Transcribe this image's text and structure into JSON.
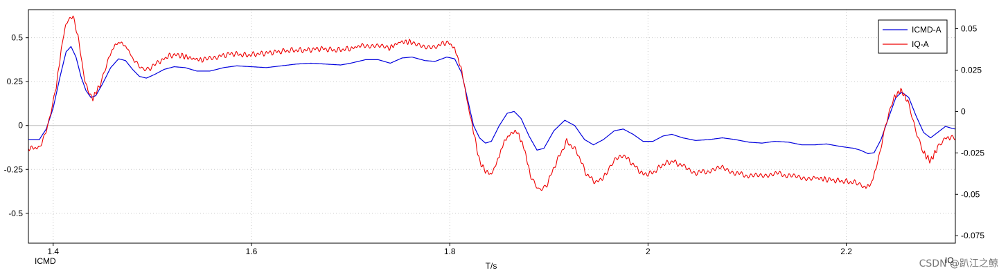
{
  "chart_data": {
    "type": "line",
    "xlabel": "T/s",
    "left_axis_label": "ICMD",
    "right_axis_label": "IQ",
    "xlim": [
      1.375,
      2.31
    ],
    "ylim_left": [
      -0.67,
      0.66
    ],
    "ylim_right": [
      -0.0795,
      0.0615
    ],
    "x_ticks": [
      {
        "value": 1.4,
        "label": "1.4"
      },
      {
        "value": 1.6,
        "label": "1.6"
      },
      {
        "value": 1.8,
        "label": "1.8"
      },
      {
        "value": 2.0,
        "label": "2"
      },
      {
        "value": 2.2,
        "label": "2.2"
      }
    ],
    "y_ticks_left": [
      {
        "value": 0.5,
        "label": "0.5"
      },
      {
        "value": 0.25,
        "label": "0.25"
      },
      {
        "value": 0,
        "label": "0"
      },
      {
        "value": -0.25,
        "label": "-0.25"
      },
      {
        "value": -0.5,
        "label": "-0.5"
      }
    ],
    "y_ticks_right": [
      {
        "value": 0.05,
        "label": "0.05"
      },
      {
        "value": 0.025,
        "label": "0.025"
      },
      {
        "value": 0,
        "label": "0"
      },
      {
        "value": -0.025,
        "label": "-0.025"
      },
      {
        "value": -0.05,
        "label": "-0.05"
      },
      {
        "value": -0.075,
        "label": "-0.075"
      }
    ],
    "grid": true,
    "legend_position": "top-right",
    "series": [
      {
        "name": "ICMD-A",
        "axis": "left",
        "color": "#0000dd",
        "points": [
          [
            1.375,
            -0.08
          ],
          [
            1.386,
            -0.08
          ],
          [
            1.393,
            -0.02
          ],
          [
            1.4,
            0.1
          ],
          [
            1.407,
            0.28
          ],
          [
            1.413,
            0.42
          ],
          [
            1.418,
            0.45
          ],
          [
            1.423,
            0.39
          ],
          [
            1.428,
            0.28
          ],
          [
            1.433,
            0.2
          ],
          [
            1.438,
            0.16
          ],
          [
            1.443,
            0.17
          ],
          [
            1.45,
            0.24
          ],
          [
            1.458,
            0.33
          ],
          [
            1.466,
            0.38
          ],
          [
            1.473,
            0.37
          ],
          [
            1.48,
            0.32
          ],
          [
            1.487,
            0.28
          ],
          [
            1.494,
            0.27
          ],
          [
            1.502,
            0.29
          ],
          [
            1.512,
            0.32
          ],
          [
            1.522,
            0.335
          ],
          [
            1.533,
            0.33
          ],
          [
            1.545,
            0.31
          ],
          [
            1.558,
            0.31
          ],
          [
            1.572,
            0.33
          ],
          [
            1.585,
            0.34
          ],
          [
            1.6,
            0.335
          ],
          [
            1.615,
            0.33
          ],
          [
            1.63,
            0.34
          ],
          [
            1.645,
            0.35
          ],
          [
            1.66,
            0.355
          ],
          [
            1.675,
            0.35
          ],
          [
            1.69,
            0.345
          ],
          [
            1.7,
            0.355
          ],
          [
            1.715,
            0.375
          ],
          [
            1.728,
            0.375
          ],
          [
            1.74,
            0.355
          ],
          [
            1.752,
            0.385
          ],
          [
            1.762,
            0.39
          ],
          [
            1.775,
            0.37
          ],
          [
            1.785,
            0.365
          ],
          [
            1.797,
            0.39
          ],
          [
            1.805,
            0.38
          ],
          [
            1.812,
            0.3
          ],
          [
            1.818,
            0.15
          ],
          [
            1.824,
            0.0
          ],
          [
            1.83,
            -0.07
          ],
          [
            1.836,
            -0.1
          ],
          [
            1.842,
            -0.09
          ],
          [
            1.85,
            0.0
          ],
          [
            1.858,
            0.07
          ],
          [
            1.865,
            0.08
          ],
          [
            1.872,
            0.04
          ],
          [
            1.88,
            -0.06
          ],
          [
            1.888,
            -0.14
          ],
          [
            1.895,
            -0.13
          ],
          [
            1.905,
            -0.03
          ],
          [
            1.916,
            0.03
          ],
          [
            1.926,
            0.0
          ],
          [
            1.936,
            -0.08
          ],
          [
            1.945,
            -0.11
          ],
          [
            1.955,
            -0.08
          ],
          [
            1.966,
            -0.03
          ],
          [
            1.975,
            -0.02
          ],
          [
            1.985,
            -0.05
          ],
          [
            1.995,
            -0.09
          ],
          [
            2.005,
            -0.09
          ],
          [
            2.015,
            -0.06
          ],
          [
            2.024,
            -0.05
          ],
          [
            2.035,
            -0.07
          ],
          [
            2.048,
            -0.085
          ],
          [
            2.062,
            -0.08
          ],
          [
            2.075,
            -0.07
          ],
          [
            2.088,
            -0.08
          ],
          [
            2.102,
            -0.095
          ],
          [
            2.115,
            -0.1
          ],
          [
            2.128,
            -0.09
          ],
          [
            2.142,
            -0.095
          ],
          [
            2.155,
            -0.11
          ],
          [
            2.168,
            -0.11
          ],
          [
            2.18,
            -0.105
          ],
          [
            2.195,
            -0.12
          ],
          [
            2.208,
            -0.13
          ],
          [
            2.214,
            -0.14
          ],
          [
            2.222,
            -0.16
          ],
          [
            2.228,
            -0.155
          ],
          [
            2.235,
            -0.08
          ],
          [
            2.243,
            0.05
          ],
          [
            2.25,
            0.16
          ],
          [
            2.256,
            0.19
          ],
          [
            2.263,
            0.16
          ],
          [
            2.27,
            0.06
          ],
          [
            2.278,
            -0.04
          ],
          [
            2.285,
            -0.07
          ],
          [
            2.292,
            -0.04
          ],
          [
            2.3,
            -0.005
          ],
          [
            2.306,
            -0.015
          ],
          [
            2.31,
            -0.02
          ]
        ]
      },
      {
        "name": "IQ-A",
        "axis": "right",
        "color": "#ee0000",
        "points": [
          [
            1.375,
            -0.022
          ],
          [
            1.386,
            -0.022
          ],
          [
            1.395,
            -0.008
          ],
          [
            1.403,
            0.015
          ],
          [
            1.41,
            0.045
          ],
          [
            1.415,
            0.056
          ],
          [
            1.42,
            0.057
          ],
          [
            1.425,
            0.046
          ],
          [
            1.43,
            0.025
          ],
          [
            1.435,
            0.012
          ],
          [
            1.44,
            0.008
          ],
          [
            1.447,
            0.016
          ],
          [
            1.455,
            0.031
          ],
          [
            1.462,
            0.04
          ],
          [
            1.468,
            0.042
          ],
          [
            1.475,
            0.038
          ],
          [
            1.482,
            0.03
          ],
          [
            1.49,
            0.025
          ],
          [
            1.498,
            0.026
          ],
          [
            1.507,
            0.03
          ],
          [
            1.518,
            0.034
          ],
          [
            1.528,
            0.034
          ],
          [
            1.54,
            0.032
          ],
          [
            1.552,
            0.031
          ],
          [
            1.565,
            0.033
          ],
          [
            1.58,
            0.035
          ],
          [
            1.595,
            0.034
          ],
          [
            1.61,
            0.035
          ],
          [
            1.625,
            0.036
          ],
          [
            1.64,
            0.037
          ],
          [
            1.655,
            0.037
          ],
          [
            1.67,
            0.038
          ],
          [
            1.685,
            0.037
          ],
          [
            1.7,
            0.038
          ],
          [
            1.712,
            0.04
          ],
          [
            1.725,
            0.04
          ],
          [
            1.738,
            0.038
          ],
          [
            1.75,
            0.042
          ],
          [
            1.762,
            0.042
          ],
          [
            1.775,
            0.038
          ],
          [
            1.788,
            0.04
          ],
          [
            1.798,
            0.042
          ],
          [
            1.805,
            0.038
          ],
          [
            1.812,
            0.025
          ],
          [
            1.818,
            0.005
          ],
          [
            1.824,
            -0.012
          ],
          [
            1.83,
            -0.03
          ],
          [
            1.836,
            -0.036
          ],
          [
            1.842,
            -0.038
          ],
          [
            1.848,
            -0.03
          ],
          [
            1.855,
            -0.018
          ],
          [
            1.862,
            -0.013
          ],
          [
            1.868,
            -0.012
          ],
          [
            1.875,
            -0.022
          ],
          [
            1.882,
            -0.04
          ],
          [
            1.89,
            -0.047
          ],
          [
            1.898,
            -0.044
          ],
          [
            1.908,
            -0.03
          ],
          [
            1.918,
            -0.018
          ],
          [
            1.928,
            -0.024
          ],
          [
            1.938,
            -0.038
          ],
          [
            1.948,
            -0.043
          ],
          [
            1.958,
            -0.038
          ],
          [
            1.966,
            -0.03
          ],
          [
            1.975,
            -0.026
          ],
          [
            1.985,
            -0.032
          ],
          [
            1.995,
            -0.038
          ],
          [
            2.005,
            -0.037
          ],
          [
            2.015,
            -0.032
          ],
          [
            2.025,
            -0.03
          ],
          [
            2.035,
            -0.033
          ],
          [
            2.048,
            -0.037
          ],
          [
            2.062,
            -0.036
          ],
          [
            2.075,
            -0.034
          ],
          [
            2.088,
            -0.037
          ],
          [
            2.102,
            -0.039
          ],
          [
            2.115,
            -0.039
          ],
          [
            2.128,
            -0.037
          ],
          [
            2.142,
            -0.039
          ],
          [
            2.155,
            -0.04
          ],
          [
            2.168,
            -0.04
          ],
          [
            2.18,
            -0.041
          ],
          [
            2.195,
            -0.042
          ],
          [
            2.21,
            -0.043
          ],
          [
            2.218,
            -0.046
          ],
          [
            2.225,
            -0.044
          ],
          [
            2.232,
            -0.03
          ],
          [
            2.24,
            -0.008
          ],
          [
            2.248,
            0.008
          ],
          [
            2.255,
            0.013
          ],
          [
            2.262,
            0.006
          ],
          [
            2.27,
            -0.012
          ],
          [
            2.278,
            -0.025
          ],
          [
            2.285,
            -0.03
          ],
          [
            2.292,
            -0.022
          ],
          [
            2.3,
            -0.016
          ],
          [
            2.306,
            -0.016
          ],
          [
            2.31,
            -0.017
          ]
        ]
      }
    ],
    "horizontal_reference_line_left": 0
  },
  "watermark": "CSDN @趴江之鲸"
}
